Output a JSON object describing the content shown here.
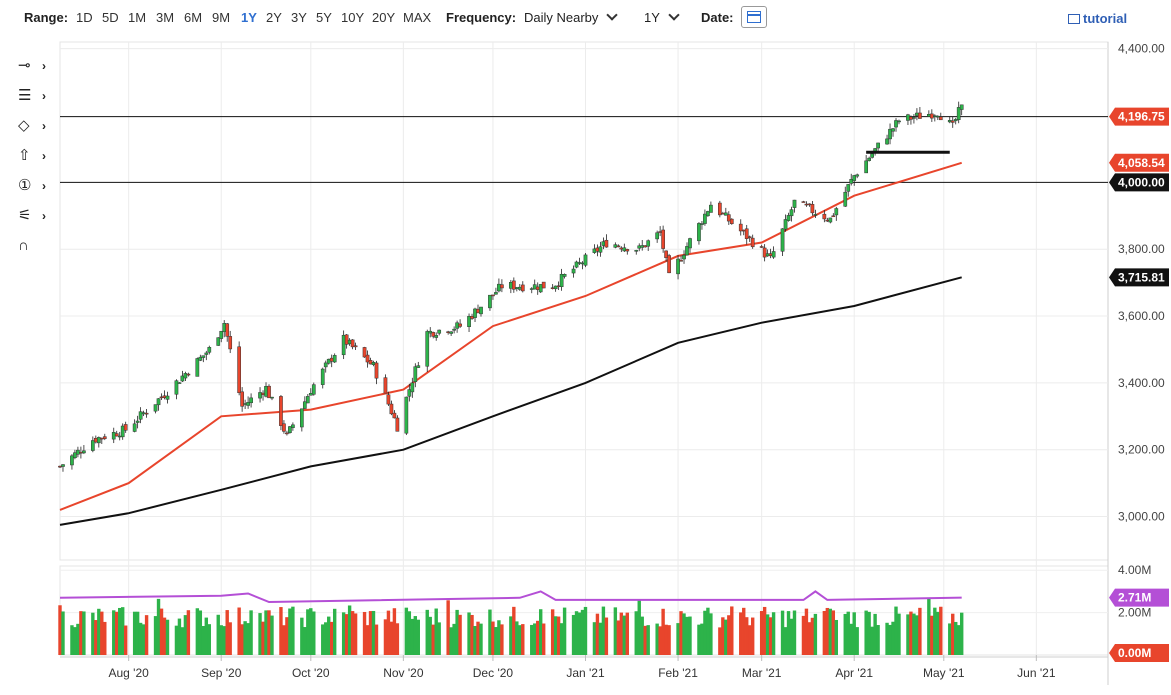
{
  "toolbar": {
    "range_label": "Range:",
    "ranges": [
      "1D",
      "5D",
      "1M",
      "3M",
      "6M",
      "9M",
      "1Y",
      "2Y",
      "3Y",
      "5Y",
      "10Y",
      "20Y",
      "MAX"
    ],
    "active_range": "1Y",
    "frequency_label": "Frequency:",
    "frequency_value": "Daily Nearby",
    "period_value": "1Y",
    "date_label": "Date:",
    "tutorial_label": "tutorial"
  },
  "drawing_tools": [
    {
      "icon": "line-tool-icon",
      "glyph": "⊸"
    },
    {
      "icon": "pattern-tool-icon",
      "glyph": "☰"
    },
    {
      "icon": "shape-tool-icon",
      "glyph": "◇"
    },
    {
      "icon": "arrow-up-tool-icon",
      "glyph": "⇧"
    },
    {
      "icon": "number-marker-icon",
      "glyph": "①"
    },
    {
      "icon": "fibonacci-tool-icon",
      "glyph": "⚟"
    },
    {
      "icon": "magnet-icon",
      "glyph": "∩"
    }
  ],
  "colors": {
    "up": "#2db34a",
    "down": "#e8452c",
    "ma50": "#e8452c",
    "ma200": "#111111",
    "vol_avg": "#b44fd6",
    "label_red": "#e8452c",
    "label_black": "#111111",
    "label_purple": "#b44fd6"
  },
  "chart_data": [
    {
      "type": "candlestick",
      "x_start": "2020-07-09",
      "x_end": "2021-05-07",
      "xaxis_range": [
        "2020-07-09",
        "2021-06-25"
      ],
      "xticks": [
        {
          "label": "Aug '20",
          "date": "2020-08-01"
        },
        {
          "label": "Sep '20",
          "date": "2020-09-01"
        },
        {
          "label": "Oct '20",
          "date": "2020-10-01"
        },
        {
          "label": "Nov '20",
          "date": "2020-11-01"
        },
        {
          "label": "Dec '20",
          "date": "2020-12-01"
        },
        {
          "label": "Jan '21",
          "date": "2021-01-01"
        },
        {
          "label": "Feb '21",
          "date": "2021-02-01"
        },
        {
          "label": "Mar '21",
          "date": "2021-03-01"
        },
        {
          "label": "Apr '21",
          "date": "2021-04-01"
        },
        {
          "label": "May '21",
          "date": "2021-05-01"
        },
        {
          "label": "Jun '21",
          "date": "2021-06-01"
        }
      ],
      "ylim": [
        2870,
        4420
      ],
      "yticks": [
        "4,400.00",
        "3,800.00",
        "3,600.00",
        "3,400.00",
        "3,200.00",
        "3,000.00"
      ],
      "yvalues": [
        4400,
        3800,
        3600,
        3400,
        3200,
        3000
      ],
      "grid": true,
      "anchors": [
        [
          "2020-07-09",
          3150
        ],
        [
          "2020-07-20",
          3230
        ],
        [
          "2020-07-31",
          3260
        ],
        [
          "2020-08-14",
          3375
        ],
        [
          "2020-08-28",
          3500
        ],
        [
          "2020-09-02",
          3580
        ],
        [
          "2020-09-08",
          3330
        ],
        [
          "2020-09-16",
          3385
        ],
        [
          "2020-09-23",
          3240
        ],
        [
          "2020-10-01",
          3380
        ],
        [
          "2020-10-12",
          3530
        ],
        [
          "2020-10-22",
          3450
        ],
        [
          "2020-10-30",
          3270
        ],
        [
          "2020-11-09",
          3550
        ],
        [
          "2020-11-20",
          3570
        ],
        [
          "2020-12-04",
          3690
        ],
        [
          "2020-12-21",
          3690
        ],
        [
          "2021-01-08",
          3820
        ],
        [
          "2021-01-19",
          3800
        ],
        [
          "2021-01-26",
          3850
        ],
        [
          "2021-01-29",
          3715
        ],
        [
          "2021-02-12",
          3935
        ],
        [
          "2021-02-25",
          3830
        ],
        [
          "2021-03-04",
          3770
        ],
        [
          "2021-03-12",
          3940
        ],
        [
          "2021-03-24",
          3890
        ],
        [
          "2021-04-01",
          4020
        ],
        [
          "2021-04-16",
          4185
        ],
        [
          "2021-04-29",
          4211
        ],
        [
          "2021-05-04",
          4165
        ],
        [
          "2021-05-07",
          4232
        ]
      ],
      "horizontal_lines": [
        {
          "value": 4196.75,
          "label": "4,196.75",
          "style": "red"
        },
        {
          "value": 4000.0,
          "label": "4,000.00",
          "style": "black"
        }
      ],
      "support_segment": {
        "x_from": "2021-04-05",
        "x_to": "2021-05-03",
        "y": 4090
      },
      "ma50": {
        "label": "4,058.54",
        "value": 4058.54,
        "points": [
          [
            "2020-07-09",
            3020
          ],
          [
            "2020-08-01",
            3100
          ],
          [
            "2020-09-01",
            3300
          ],
          [
            "2020-10-01",
            3320
          ],
          [
            "2020-11-01",
            3380
          ],
          [
            "2020-12-01",
            3570
          ],
          [
            "2021-01-01",
            3660
          ],
          [
            "2021-02-01",
            3780
          ],
          [
            "2021-03-01",
            3820
          ],
          [
            "2021-04-01",
            3960
          ],
          [
            "2021-05-07",
            4058.54
          ]
        ]
      },
      "ma200": {
        "label": "3,715.81",
        "value": 3715.81,
        "points": [
          [
            "2020-07-09",
            2975
          ],
          [
            "2020-08-01",
            3010
          ],
          [
            "2020-09-01",
            3080
          ],
          [
            "2020-10-01",
            3150
          ],
          [
            "2020-11-01",
            3200
          ],
          [
            "2020-12-01",
            3300
          ],
          [
            "2021-01-01",
            3400
          ],
          [
            "2021-02-01",
            3520
          ],
          [
            "2021-03-01",
            3580
          ],
          [
            "2021-04-01",
            3630
          ],
          [
            "2021-05-07",
            3715.81
          ]
        ]
      }
    },
    {
      "type": "bar",
      "series_note": "volume",
      "ylim": [
        0,
        4.2
      ],
      "yticks": [
        "4.00M",
        "2.00M"
      ],
      "yvalues": [
        4.0,
        2.0
      ],
      "avg_value": 2.71,
      "avg_label": "2.71M",
      "zero_label": "0.00M",
      "avg_points": [
        [
          "2020-07-09",
          2.7
        ],
        [
          "2020-09-01",
          2.8
        ],
        [
          "2020-09-10",
          2.9
        ],
        [
          "2020-09-17",
          2.5
        ],
        [
          "2020-12-10",
          2.7
        ],
        [
          "2020-12-17",
          3.0
        ],
        [
          "2020-12-22",
          2.6
        ],
        [
          "2021-03-15",
          2.6
        ],
        [
          "2021-03-19",
          3.0
        ],
        [
          "2021-03-23",
          2.6
        ],
        [
          "2021-05-07",
          2.71
        ]
      ]
    }
  ]
}
